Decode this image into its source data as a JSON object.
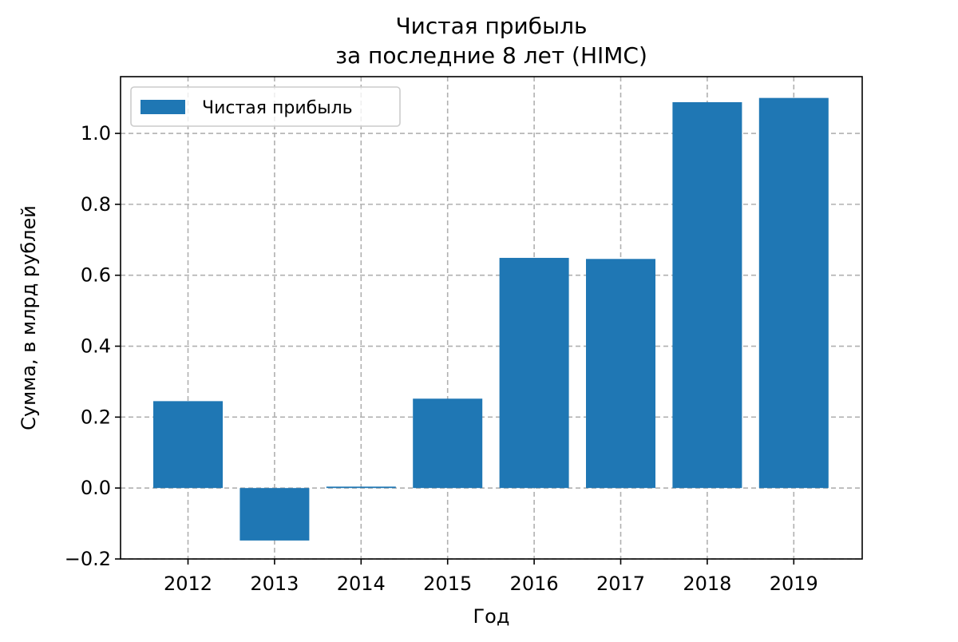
{
  "chart_data": {
    "type": "bar",
    "title": [
      "Чистая прибыль",
      "за последние 8 лет (HIMC)"
    ],
    "xlabel": "Год",
    "ylabel": "Сумма, в млрд рублей",
    "categories": [
      "2012",
      "2013",
      "2014",
      "2015",
      "2016",
      "2017",
      "2018",
      "2019"
    ],
    "series": [
      {
        "name": "Чистая прибыль",
        "values": [
          0.245,
          -0.148,
          0.004,
          0.252,
          0.649,
          0.646,
          1.088,
          1.1
        ],
        "color": "#1f77b4"
      }
    ],
    "ylim": [
      -0.2,
      1.16
    ],
    "yticks": [
      -0.2,
      0.0,
      0.2,
      0.4,
      0.6,
      0.8,
      1.0
    ],
    "ytick_labels": [
      "−0.2",
      "0.0",
      "0.2",
      "0.4",
      "0.6",
      "0.8",
      "1.0"
    ],
    "grid": true,
    "legend": "top-left"
  }
}
